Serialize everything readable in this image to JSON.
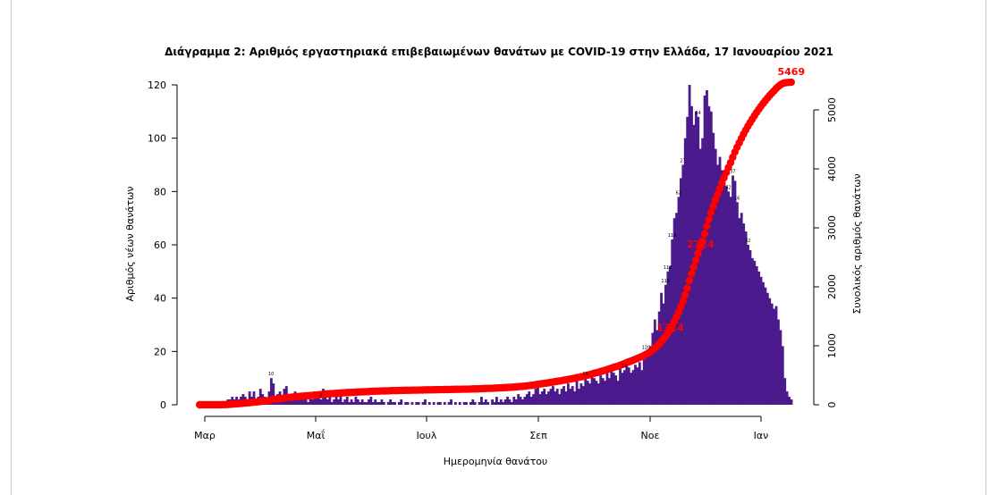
{
  "chart_data": {
    "type": "bar",
    "title": "Διάγραμμα 2: Αριθμός εργαστηριακά επιβεβαιωμένων θανάτων με COVID-19 στην Ελλάδα, 17 Ιανουαρίου 2021",
    "xlabel": "Ημερομηνία θανάτου",
    "ylabel": "Αριθμός νέων θανάτων",
    "y2label": "Συνολικός αριθμός θανάτων",
    "x_ticks": [
      "Μαρ",
      "Μαΐ",
      "Ιουλ",
      "Σεπ",
      "Νοε",
      "Ιαν"
    ],
    "ylim": [
      0,
      120
    ],
    "y_ticks": [
      0,
      20,
      40,
      60,
      80,
      100,
      120
    ],
    "y2lim": [
      0,
      5500
    ],
    "y2_ticks": [
      0,
      1000,
      2000,
      3000,
      4000,
      5000
    ],
    "colors": {
      "bars": "#4b1a8c",
      "cumulative": "#ff0000"
    },
    "series": [
      {
        "name": "daily",
        "type": "bar",
        "values": [
          0,
          0,
          0,
          0,
          0,
          0,
          0,
          0,
          0,
          0,
          1,
          1,
          1,
          2,
          2,
          3,
          2,
          3,
          2,
          3,
          4,
          3,
          2,
          5,
          3,
          5,
          2,
          3,
          6,
          4,
          3,
          2,
          5,
          10,
          8,
          3,
          4,
          5,
          3,
          6,
          7,
          2,
          4,
          3,
          5,
          2,
          4,
          3,
          2,
          4,
          1,
          3,
          2,
          5,
          3,
          4,
          2,
          6,
          3,
          2,
          3,
          1,
          2,
          3,
          2,
          4,
          1,
          2,
          3,
          1,
          2,
          1,
          3,
          2,
          1,
          2,
          1,
          1,
          2,
          3,
          1,
          2,
          1,
          1,
          2,
          1,
          0,
          1,
          2,
          1,
          1,
          0,
          1,
          2,
          0,
          1,
          1,
          0,
          1,
          0,
          1,
          1,
          0,
          1,
          2,
          0,
          1,
          0,
          1,
          0,
          1,
          1,
          0,
          1,
          0,
          1,
          2,
          0,
          1,
          0,
          1,
          0,
          1,
          1,
          0,
          1,
          2,
          1,
          0,
          1,
          3,
          1,
          2,
          1,
          0,
          2,
          1,
          3,
          1,
          2,
          1,
          2,
          3,
          2,
          1,
          3,
          2,
          4,
          3,
          2,
          3,
          4,
          5,
          3,
          4,
          6,
          8,
          4,
          5,
          6,
          4,
          5,
          6,
          7,
          5,
          6,
          4,
          6,
          7,
          5,
          8,
          6,
          7,
          5,
          9,
          6,
          8,
          7,
          10,
          9,
          8,
          12,
          10,
          9,
          8,
          11,
          10,
          9,
          12,
          10,
          13,
          12,
          11,
          9,
          14,
          12,
          13,
          16,
          14,
          12,
          13,
          15,
          14,
          16,
          13,
          17,
          20,
          18,
          22,
          27,
          32,
          28,
          35,
          42,
          38,
          45,
          50,
          52,
          62,
          70,
          72,
          78,
          85,
          90,
          100,
          108,
          120,
          112,
          105,
          110,
          108,
          96,
          100,
          116,
          118,
          112,
          110,
          102,
          96,
          90,
          93,
          88,
          85,
          82,
          80,
          78,
          86,
          84,
          76,
          70,
          72,
          68,
          65,
          60,
          58,
          55,
          54,
          52,
          50,
          48,
          46,
          44,
          42,
          40,
          38,
          36,
          37,
          32,
          28,
          22,
          10,
          5,
          3,
          2
        ]
      },
      {
        "name": "cumulative",
        "type": "line",
        "annotations": [
          {
            "label": "1314",
            "value": 1314
          },
          {
            "label": "2724",
            "value": 2724
          },
          {
            "label": "5469",
            "value": 5469
          }
        ]
      }
    ],
    "annotations": [
      "10",
      "8",
      "15",
      "12",
      "120",
      "116",
      "112",
      "110",
      "62",
      "27",
      "54",
      "52",
      "37",
      "32",
      "16"
    ],
    "grid": false,
    "legend": "none"
  }
}
